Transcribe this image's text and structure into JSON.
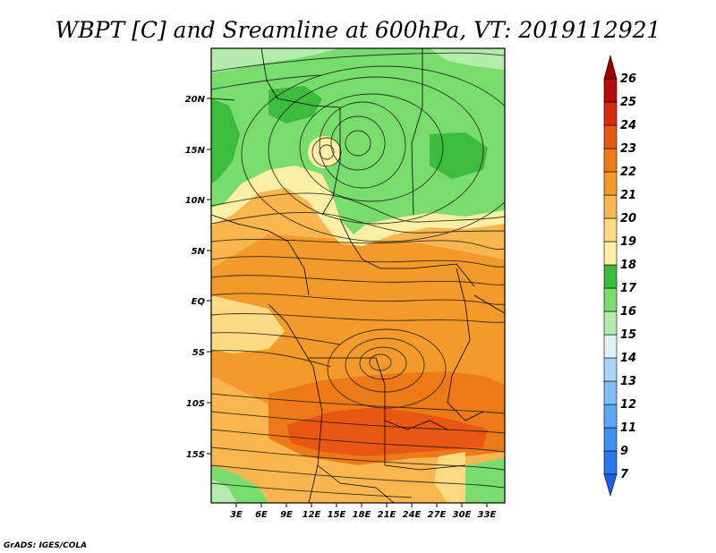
{
  "title": "WBPT [C] and Sreamline at 600hPa, VT: 2019112921",
  "credit": "GrADS: IGES/COLA",
  "map": {
    "lon_labels": [
      "3E",
      "6E",
      "9E",
      "12E",
      "15E",
      "18E",
      "21E",
      "24E",
      "27E",
      "30E",
      "33E"
    ],
    "lat_labels": [
      "20N",
      "15N",
      "10N",
      "5N",
      "EQ",
      "5S",
      "10S",
      "15S"
    ]
  },
  "colorbar": {
    "levels": [
      "7",
      "9",
      "11",
      "12",
      "13",
      "14",
      "15",
      "16",
      "17",
      "18",
      "19",
      "20",
      "21",
      "22",
      "23",
      "24",
      "25",
      "26"
    ],
    "colors": [
      "#1e5fe6",
      "#2b78ee",
      "#3e8ff0",
      "#5aa7f2",
      "#80bdf4",
      "#a9d4f7",
      "#dff1f6",
      "#b3ecab",
      "#78dd6d",
      "#3cbb3c",
      "#faefa4",
      "#fcd983",
      "#f9b54e",
      "#f29b2a",
      "#ed7a16",
      "#e95812",
      "#d62a0c",
      "#b80a0a",
      "#9e0000"
    ]
  },
  "chart_data": {
    "type": "map",
    "variable": "Wet-bulb potential temperature (WBPT, C) with streamlines at 600hPa",
    "valid_time": "2019112921",
    "lon_range": [
      "1E",
      "35E"
    ],
    "lat_range": [
      "22S",
      "24N"
    ],
    "color_levels": [
      7,
      9,
      11,
      12,
      13,
      14,
      15,
      16,
      17,
      18,
      19,
      20,
      21,
      22,
      23,
      24,
      25,
      26
    ]
  }
}
